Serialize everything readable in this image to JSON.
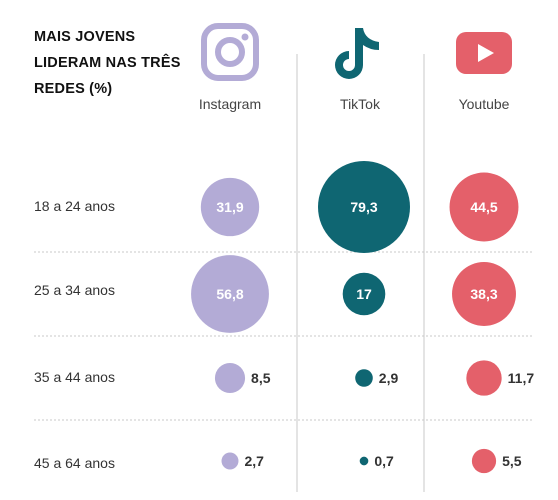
{
  "title": "MAIS JOVENS LIDERAM NAS TRÊS REDES (%)",
  "colors": {
    "instagram": "#b3abd6",
    "tiktok": "#0f6672",
    "youtube": "#e4606a",
    "grid": "#c9c9c9"
  },
  "networks": [
    {
      "label": "Instagram",
      "icon": "instagram-icon"
    },
    {
      "label": "TikTok",
      "icon": "tiktok-icon"
    },
    {
      "label": "Youtube",
      "icon": "youtube-icon"
    }
  ],
  "chart_data": {
    "type": "bubble-grid",
    "categories": [
      "18 a 24 anos",
      "25 a 34 anos",
      "35 a 44 anos",
      "45 a 64 anos"
    ],
    "series": [
      {
        "name": "Instagram",
        "values": [
          31.9,
          56.8,
          8.5,
          2.7
        ],
        "labels": [
          "31,9",
          "56,8",
          "8,5",
          "2,7"
        ]
      },
      {
        "name": "TikTok",
        "values": [
          79.3,
          17,
          2.9,
          0.7
        ],
        "labels": [
          "79,3",
          "17",
          "2,9",
          "0,7"
        ]
      },
      {
        "name": "Youtube",
        "values": [
          44.5,
          38.3,
          11.7,
          5.5
        ],
        "labels": [
          "44,5",
          "38,3",
          "11,7",
          "5,5"
        ]
      }
    ]
  }
}
